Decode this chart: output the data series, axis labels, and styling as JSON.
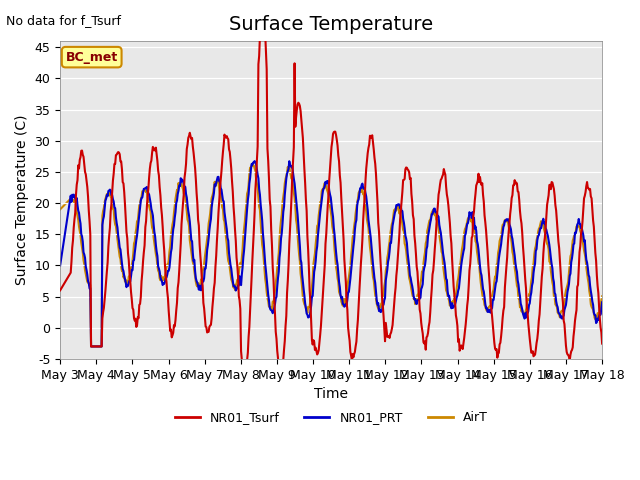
{
  "title": "Surface Temperature",
  "xlabel": "Time",
  "ylabel": "Surface Temperature (C)",
  "top_left_text": "No data for f_Tsurf",
  "annotation_box": "BC_met",
  "ylim": [
    -5,
    46
  ],
  "axes_bg_color": "#e8e8e8",
  "fig_bg_color": "#ffffff",
  "x_tick_positions": [
    0,
    1,
    2,
    3,
    4,
    5,
    6,
    7,
    8,
    9,
    10,
    11,
    12,
    13,
    14,
    15
  ],
  "x_tick_labels": [
    "May 3",
    "May 4",
    "May 5",
    "May 6",
    "May 7",
    "May 8",
    "May 9",
    "May 10",
    "May 11",
    "May 12",
    "May 13",
    "May 14",
    "May 15",
    "May 16",
    "May 17",
    "May 18"
  ],
  "series_colors": {
    "NR01_Tsurf": "#cc0000",
    "NR01_PRT": "#0000cc",
    "AirT": "#cc8800"
  },
  "legend_items": [
    {
      "label": "NR01_Tsurf",
      "color": "#cc0000"
    },
    {
      "label": "NR01_PRT",
      "color": "#0000cc"
    },
    {
      "label": "AirT",
      "color": "#cc8800"
    }
  ],
  "yticks": [
    -5,
    0,
    5,
    10,
    15,
    20,
    25,
    30,
    35,
    40,
    45
  ],
  "linewidth": 1.5,
  "title_fontsize": 14,
  "label_fontsize": 10,
  "tick_fontsize": 9
}
